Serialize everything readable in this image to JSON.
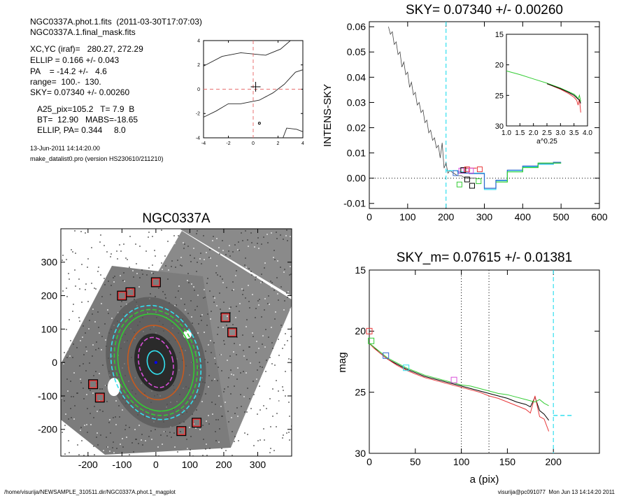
{
  "header": {
    "file_line": "NGC0337A.phot.1.fits  (2011-03-30T17:07:03)",
    "mask_line": "NGC0337A.1.final_mask.fits",
    "params": [
      "XC,YC (iraf)=   280.27, 272.29",
      "ELLIP = 0.166 +/- 0.043",
      "PA    = -14.2 +/-   4.6",
      "range=  100.-  130.",
      "SKY= 0.07340 +/- 0.00260"
    ],
    "params2": [
      "A25_pix=105.2   T= 7.9  B",
      "BT=  12.90   MABS=-18.65",
      "ELLIP, PA= 0.344     8.0"
    ],
    "date": "13-Jun-2011 14:14:20.00",
    "program": "make_datalist0.pro (version HS230610/211210)"
  },
  "footer": {
    "left": "/home/visurija/NEWSAMPLE_310511.dir/NGC0337A.phot.1_magplot",
    "right": "visurija@pc091077  Mon Jun 13 14:14:20 2011"
  },
  "colors": {
    "red": "#e8393b",
    "green": "#33cc33",
    "blue": "#3366cc",
    "cyan": "#33e0ef",
    "orange": "#c85a1e",
    "magenta": "#d94fd9",
    "purple": "#8844aa",
    "black": "#000000"
  },
  "chart_data": [
    {
      "id": "contour",
      "type": "line",
      "xlim": [
        -4,
        4
      ],
      "ylim": [
        -4,
        4
      ],
      "xticks": [
        -4,
        -2,
        0,
        2,
        4
      ],
      "yticks": [
        -4,
        -2,
        0,
        2,
        4
      ],
      "contours": [
        [
          [
            -4,
            1.9
          ],
          [
            -2.5,
            2.7
          ],
          [
            -1.0,
            3.0
          ],
          [
            1.0,
            2.8
          ],
          [
            2.2,
            3.3
          ],
          [
            3.0,
            4.0
          ]
        ],
        [
          [
            -4,
            -2.3
          ],
          [
            -3.0,
            -1.8
          ],
          [
            -2.0,
            -1.2
          ],
          [
            -1.0,
            -1.2
          ],
          [
            0.5,
            -0.9
          ],
          [
            1.6,
            -0.3
          ],
          [
            2.5,
            0.4
          ],
          [
            3.4,
            1.4
          ],
          [
            4.0,
            1.6
          ]
        ],
        [
          [
            2.4,
            -4.0
          ],
          [
            2.7,
            -3.2
          ],
          [
            3.5,
            -3.3
          ],
          [
            4.0,
            -3.5
          ]
        ]
      ],
      "center": [
        0.2,
        0.2
      ],
      "small_marker": [
        0.5,
        -2.8
      ]
    },
    {
      "id": "sky",
      "type": "line",
      "title": "SKY= 0.07340 +/- 0.00260",
      "ylabel": "INTENS-SKY",
      "xlabel": "",
      "xlim": [
        0,
        600
      ],
      "ylim": [
        -0.012,
        0.062
      ],
      "xticks": [
        0,
        100,
        200,
        300,
        400,
        500,
        600
      ],
      "yticks": [
        -0.01,
        0.0,
        0.01,
        0.02,
        0.03,
        0.04,
        0.05,
        0.06
      ],
      "ytick_labels": [
        "-0.01",
        "0.00",
        "0.01",
        "0.02",
        "0.03",
        "0.04",
        "0.05",
        "0.06"
      ],
      "vline_x": 200,
      "profile": {
        "x": [
          50,
          55,
          60,
          65,
          70,
          75,
          80,
          85,
          90,
          95,
          100,
          105,
          110,
          115,
          120,
          125,
          130,
          135,
          140,
          145,
          150,
          155,
          160,
          165,
          170,
          175,
          180,
          185,
          190,
          195,
          200,
          205,
          210,
          220,
          230,
          240,
          250,
          260,
          270,
          280
        ],
        "y": [
          0.06,
          0.057,
          0.058,
          0.053,
          0.054,
          0.049,
          0.05,
          0.044,
          0.046,
          0.041,
          0.042,
          0.036,
          0.038,
          0.033,
          0.034,
          0.029,
          0.03,
          0.026,
          0.027,
          0.022,
          0.023,
          0.018,
          0.019,
          0.015,
          0.016,
          0.012,
          0.013,
          0.008,
          0.014,
          0.004,
          0.006,
          0.002,
          0.003,
          0.002,
          0.001,
          0.001,
          0.0,
          0.0,
          0.0,
          0.0
        ]
      },
      "series": [
        {
          "color": "cyan",
          "x": [
            200,
            230,
            230,
            260,
            260,
            300,
            300,
            330,
            330,
            360,
            360,
            400,
            400,
            440,
            440,
            480,
            480,
            500
          ],
          "y": [
            0.003,
            0.003,
            0.0025,
            0.0025,
            0.002,
            0.002,
            -0.0045,
            -0.0045,
            -0.001,
            -0.001,
            0.003,
            0.003,
            0.0045,
            0.0045,
            0.0055,
            0.0055,
            0.006,
            0.006
          ]
        },
        {
          "color": "blue",
          "x": [
            230,
            260,
            260,
            300,
            300,
            330,
            330,
            360,
            360,
            400,
            400,
            440,
            440,
            480,
            480,
            500
          ],
          "y": [
            0.002,
            0.002,
            0.0018,
            0.0018,
            -0.004,
            -0.004,
            -0.0008,
            -0.0008,
            0.0032,
            0.0032,
            0.0048,
            0.0048,
            0.0058,
            0.0058,
            0.0063,
            0.0063
          ]
        },
        {
          "color": "green",
          "x": [
            330,
            360,
            360,
            400,
            400,
            440,
            440,
            500
          ],
          "y": [
            -0.0015,
            -0.0015,
            0.0025,
            0.0025,
            0.0042,
            0.0042,
            0.006,
            0.006
          ]
        },
        {
          "color": "red",
          "x": [
            250,
            280
          ],
          "y": [
            0.004,
            0.004
          ]
        }
      ],
      "squares": [
        {
          "x": 225,
          "y": 0.002,
          "color": "blue"
        },
        {
          "x": 240,
          "y": 0.003,
          "color": "magenta"
        },
        {
          "x": 245,
          "y": 0.0032,
          "color": "black"
        },
        {
          "x": 255,
          "y": 0.0035,
          "color": "red"
        },
        {
          "x": 265,
          "y": 0.003,
          "color": "magenta"
        },
        {
          "x": 288,
          "y": 0.0035,
          "color": "red"
        },
        {
          "x": 235,
          "y": -0.0025,
          "color": "green"
        },
        {
          "x": 268,
          "y": -0.003,
          "color": "black"
        },
        {
          "x": 285,
          "y": -0.0012,
          "color": "green"
        },
        {
          "x": 255,
          "y": -0.0005,
          "color": "black"
        }
      ]
    },
    {
      "id": "inset",
      "type": "line",
      "xlabel": "a^0.25",
      "xlim": [
        1.0,
        4.0
      ],
      "ylim": [
        15,
        30
      ],
      "xticks": [
        1.0,
        1.5,
        2.0,
        2.5,
        3.0,
        3.5,
        4.0
      ],
      "xtick_labels": [
        "1.0",
        "1.5",
        "2.0",
        "2.5",
        "3.0",
        "3.5",
        "4.0"
      ],
      "yticks": [
        15,
        20,
        25,
        30
      ],
      "series": [
        {
          "color": "green",
          "x": [
            1.0,
            1.5,
            2.0,
            2.5,
            3.0,
            3.3,
            3.5,
            3.6,
            3.65,
            3.7,
            3.75
          ],
          "y": [
            21.0,
            21.6,
            22.3,
            23.0,
            23.8,
            24.4,
            24.8,
            25.2,
            25.6,
            25.0,
            26.0
          ]
        },
        {
          "color": "red",
          "x": [
            2.5,
            3.0,
            3.3,
            3.5,
            3.6,
            3.65,
            3.7,
            3.75
          ],
          "y": [
            23.1,
            24.0,
            24.7,
            25.3,
            25.8,
            26.6,
            25.6,
            27.8
          ]
        },
        {
          "color": "black",
          "x": [
            2.5,
            3.0,
            3.3,
            3.5,
            3.6,
            3.7,
            3.75
          ],
          "y": [
            23.1,
            23.9,
            24.5,
            25.0,
            25.4,
            25.8,
            26.3
          ]
        }
      ]
    },
    {
      "id": "image",
      "type": "scatter",
      "title": "NGC0337A",
      "xlim": [
        -280,
        400
      ],
      "ylim": [
        -280,
        400
      ],
      "xticks": [
        -200,
        -100,
        0,
        100,
        200,
        300
      ],
      "yticks": [
        -200,
        -100,
        0,
        100,
        200,
        300
      ],
      "squares": [
        [
          -75,
          210
        ],
        [
          -100,
          200
        ],
        [
          0,
          240
        ],
        [
          205,
          135
        ],
        [
          225,
          90
        ],
        [
          -185,
          -65
        ],
        [
          -165,
          -105
        ],
        [
          120,
          -180
        ],
        [
          75,
          -205
        ]
      ],
      "ellipses": [
        {
          "rx": 130,
          "ry": 170,
          "rot": -14,
          "color": "cyan",
          "dash": true
        },
        {
          "rx": 120,
          "ry": 158,
          "rot": -14,
          "color": "green",
          "dash": true
        },
        {
          "rx": 110,
          "ry": 145,
          "rot": -14,
          "color": "green",
          "dash": false
        },
        {
          "rx": 82,
          "ry": 110,
          "rot": -8,
          "color": "orange",
          "dash": false
        },
        {
          "rx": 50,
          "ry": 75,
          "rot": -14,
          "color": "magenta",
          "dash": true
        },
        {
          "rx": 25,
          "ry": 35,
          "rot": -14,
          "color": "cyan",
          "dash": false
        }
      ]
    },
    {
      "id": "mag",
      "type": "line",
      "title": "SKY_m=  0.07615 +/- 0.01381",
      "xlabel": "a (pix)",
      "ylabel": "mag",
      "xlim": [
        0,
        250
      ],
      "ylim": [
        30,
        15
      ],
      "xticks": [
        0,
        50,
        100,
        150,
        200
      ],
      "yticks": [
        15,
        20,
        25,
        30
      ],
      "vlines_dotted": [
        100,
        130
      ],
      "vline_dashed": 200,
      "sky_level": {
        "x": [
          200,
          220
        ],
        "y": [
          26.9,
          26.9
        ]
      },
      "series": [
        {
          "color": "black",
          "x": [
            0,
            5,
            10,
            20,
            30,
            40,
            50,
            60,
            70,
            80,
            90,
            100,
            110,
            120,
            130,
            140,
            150,
            160,
            170,
            175,
            180,
            185,
            190,
            195
          ],
          "y": [
            21.0,
            21.3,
            21.7,
            22.3,
            22.7,
            23.1,
            23.4,
            23.7,
            23.9,
            24.1,
            24.3,
            24.5,
            24.7,
            24.9,
            25.1,
            25.3,
            25.5,
            25.8,
            26.0,
            26.2,
            25.4,
            26.5,
            26.8,
            27.3
          ]
        },
        {
          "color": "red",
          "x": [
            0,
            5,
            10,
            20,
            30,
            40,
            50,
            60,
            70,
            80,
            90,
            100,
            110,
            120,
            130,
            140,
            150,
            160,
            170,
            175,
            180,
            185,
            190,
            195
          ],
          "y": [
            21.0,
            21.4,
            21.7,
            22.3,
            22.8,
            23.2,
            23.5,
            23.8,
            24.0,
            24.2,
            24.4,
            24.6,
            24.8,
            25.0,
            25.3,
            25.5,
            25.8,
            26.1,
            26.4,
            26.7,
            25.3,
            27.0,
            27.2,
            28.2
          ]
        },
        {
          "color": "green",
          "x": [
            0,
            5,
            10,
            20,
            30,
            40,
            50,
            60,
            70,
            80,
            90,
            100,
            110,
            120,
            130,
            140,
            150,
            160,
            170,
            180,
            185,
            190,
            195
          ],
          "y": [
            21.0,
            21.3,
            21.6,
            22.2,
            22.6,
            23.0,
            23.3,
            23.6,
            23.8,
            24.0,
            24.2,
            24.4,
            24.5,
            24.7,
            24.9,
            25.1,
            25.2,
            25.4,
            25.6,
            25.8,
            25.6,
            25.9,
            26.1
          ]
        }
      ],
      "squares": [
        {
          "x": 0,
          "y": 20.0,
          "color": "red"
        },
        {
          "x": 2,
          "y": 20.8,
          "color": "green"
        },
        {
          "x": 18,
          "y": 22.0,
          "color": "blue"
        },
        {
          "x": 40,
          "y": 23.0,
          "color": "cyan"
        },
        {
          "x": 92,
          "y": 24.0,
          "color": "magenta"
        }
      ]
    }
  ]
}
